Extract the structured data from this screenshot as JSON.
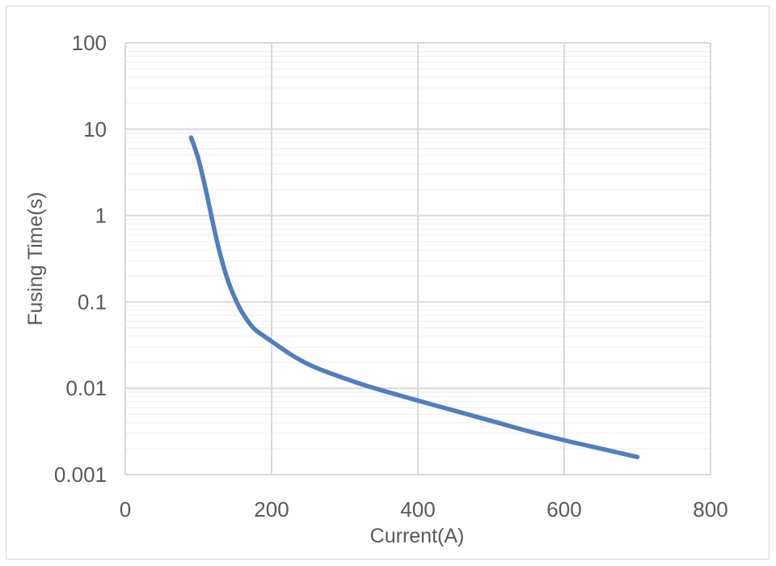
{
  "chart_data": {
    "type": "line",
    "title": "",
    "xlabel": "Current(A)",
    "ylabel": "Fusing Time(s)",
    "xlim": [
      0,
      800
    ],
    "ylim": [
      0.001,
      100
    ],
    "y_scale": "log",
    "x_ticks": [
      "0",
      "200",
      "400",
      "600",
      "800"
    ],
    "x_tick_values": [
      0,
      200,
      400,
      600,
      800
    ],
    "y_ticks": [
      "0.001",
      "0.01",
      "0.1",
      "1",
      "10",
      "100"
    ],
    "y_tick_values": [
      0.001,
      0.01,
      0.1,
      1,
      10,
      100
    ],
    "grid": true,
    "legend": "none",
    "series": [
      {
        "color": "#4f7fbf",
        "x": [
          90,
          100,
          110,
          120,
          130,
          140,
          150,
          160,
          175,
          190,
          200,
          225,
          250,
          275,
          300,
          325,
          350,
          400,
          450,
          500,
          550,
          600,
          650,
          700
        ],
        "y": [
          8.0,
          4.5,
          2.0,
          0.8,
          0.35,
          0.18,
          0.11,
          0.075,
          0.05,
          0.04,
          0.035,
          0.025,
          0.019,
          0.0155,
          0.013,
          0.011,
          0.0095,
          0.0072,
          0.0055,
          0.0042,
          0.0032,
          0.0025,
          0.002,
          0.0016
        ]
      }
    ]
  }
}
